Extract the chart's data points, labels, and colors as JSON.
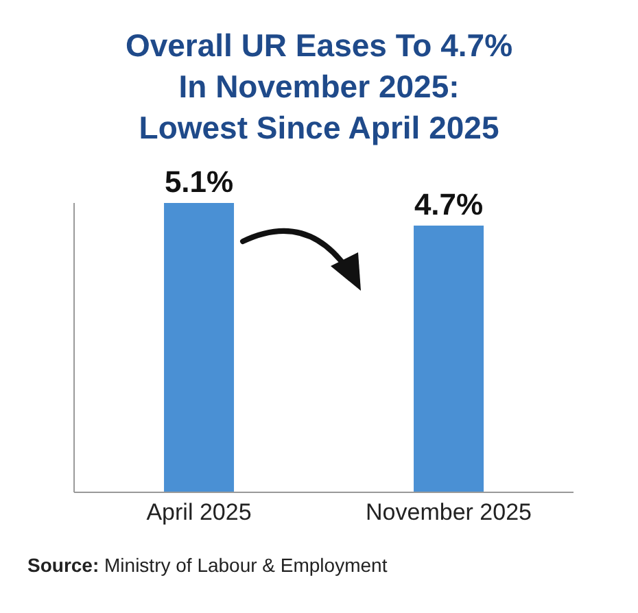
{
  "chart_data": {
    "type": "bar",
    "title": "Overall UR Eases To 4.7%\nIn November 2025:\nLowest Since April 2025",
    "categories": [
      "April 2025",
      "November 2025"
    ],
    "values": [
      5.1,
      4.7
    ],
    "value_labels": [
      "5.1%",
      "4.7%"
    ],
    "color": "#4a90d4",
    "annotations": [
      "Source: Ministry of Labour & Employment"
    ]
  }
}
